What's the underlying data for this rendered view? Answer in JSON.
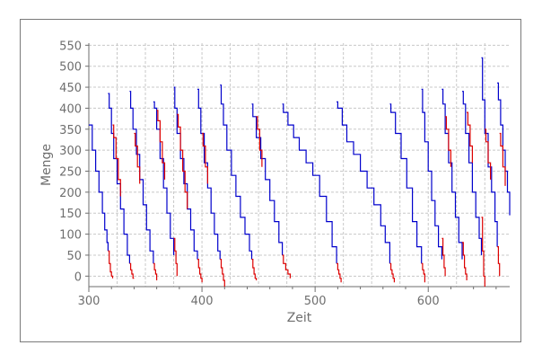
{
  "chart_data": {
    "type": "line",
    "title": "",
    "xlabel": "Zeit",
    "ylabel": "Menge",
    "xlim": [
      300,
      672
    ],
    "ylim": [
      -25,
      555
    ],
    "x_ticks": [
      300,
      400,
      500,
      600
    ],
    "y_ticks": [
      0,
      50,
      100,
      150,
      200,
      250,
      300,
      350,
      400,
      450,
      500,
      550
    ],
    "grid": true,
    "colors": {
      "inventory": "#0000cc",
      "shortfall": "#dd0000",
      "grid": "#c8c8c8",
      "axis": "#6e6e6e"
    },
    "series": [
      {
        "segments": [
          {
            "x": [
              300,
              303,
              306,
              309,
              312,
              314,
              316,
              317
            ],
            "y": [
              360,
              300,
              250,
              200,
              150,
              110,
              80,
              60
            ]
          },
          {
            "x": [
              317,
              318,
              320,
              322,
              325,
              328,
              331,
              334,
              336
            ],
            "y": [
              435,
              400,
              340,
              280,
              220,
              160,
              100,
              50,
              30
            ]
          },
          {
            "x": [
              336,
              337,
              339,
              342,
              345,
              348,
              351,
              354,
              357
            ],
            "y": [
              440,
              400,
              350,
              290,
              230,
              170,
              110,
              60,
              30
            ]
          },
          {
            "x": [
              357,
              358,
              360,
              363,
              366,
              369,
              372,
              375
            ],
            "y": [
              415,
              400,
              350,
              280,
              210,
              150,
              90,
              50
            ]
          },
          {
            "x": [
              375,
              376,
              378,
              381,
              384,
              387,
              390,
              393,
              396
            ],
            "y": [
              450,
              400,
              340,
              280,
              220,
              160,
              110,
              60,
              40
            ]
          },
          {
            "x": [
              396,
              397,
              399,
              402,
              405,
              408,
              411,
              414,
              416
            ],
            "y": [
              445,
              400,
              340,
              270,
              210,
              150,
              100,
              60,
              40
            ]
          },
          {
            "x": [
              416,
              417,
              419,
              422,
              426,
              430,
              434,
              438,
              442,
              444
            ],
            "y": [
              455,
              410,
              360,
              300,
              240,
              190,
              140,
              100,
              60,
              40
            ]
          },
          {
            "x": [
              444,
              445,
              448,
              452,
              456,
              460,
              464,
              468,
              471
            ],
            "y": [
              410,
              380,
              330,
              280,
              230,
              180,
              130,
              80,
              50
            ]
          },
          {
            "x": [
              471,
              472,
              476,
              481,
              486,
              492,
              498,
              504,
              510,
              515,
              519
            ],
            "y": [
              410,
              390,
              360,
              330,
              300,
              270,
              240,
              190,
              130,
              70,
              30
            ]
          },
          {
            "x": [
              519,
              520,
              524,
              528,
              534,
              540,
              546,
              552,
              558,
              562,
              566
            ],
            "y": [
              415,
              400,
              360,
              320,
              290,
              250,
              210,
              170,
              120,
              80,
              30
            ]
          },
          {
            "x": [
              566,
              567,
              571,
              576,
              581,
              586,
              590,
              594
            ],
            "y": [
              410,
              390,
              340,
              280,
              210,
              130,
              70,
              30
            ]
          },
          {
            "x": [
              594,
              595,
              597,
              600,
              603,
              606,
              609,
              612
            ],
            "y": [
              445,
              390,
              320,
              250,
              180,
              120,
              70,
              40
            ]
          },
          {
            "x": [
              612,
              613,
              615,
              618,
              621,
              624,
              627,
              630
            ],
            "y": [
              445,
              410,
              340,
              270,
              200,
              140,
              80,
              40
            ]
          },
          {
            "x": [
              630,
              631,
              633,
              636,
              639,
              642,
              645,
              647
            ],
            "y": [
              440,
              410,
              340,
              270,
              200,
              140,
              90,
              50
            ]
          },
          {
            "x": [
              647,
              648,
              650,
              653,
              656,
              659,
              661
            ],
            "y": [
              520,
              420,
              340,
              260,
              200,
              130,
              70
            ]
          },
          {
            "x": [
              661,
              662,
              664,
              666,
              668,
              670,
              672
            ],
            "y": [
              460,
              420,
              360,
              300,
              250,
              200,
              145
            ]
          }
        ]
      },
      {
        "segments": [
          {
            "x": [
              317,
              318,
              319,
              320,
              321
            ],
            "y": [
              60,
              30,
              10,
              0,
              -5
            ]
          },
          {
            "x": [
              321,
              322,
              324,
              326,
              328
            ],
            "y": [
              360,
              330,
              280,
              230,
              190
            ]
          },
          {
            "x": [
              336,
              337,
              338,
              339,
              340
            ],
            "y": [
              30,
              15,
              5,
              -5,
              -5
            ]
          },
          {
            "x": [
              340,
              341,
              343,
              345
            ],
            "y": [
              340,
              310,
              260,
              220
            ]
          },
          {
            "x": [
              357,
              358,
              359,
              360
            ],
            "y": [
              30,
              15,
              5,
              -10
            ]
          },
          {
            "x": [
              360,
              361,
              363,
              365,
              367
            ],
            "y": [
              395,
              370,
              320,
              270,
              230
            ]
          },
          {
            "x": [
              375,
              376,
              377,
              378
            ],
            "y": [
              90,
              60,
              30,
              0
            ]
          },
          {
            "x": [
              378,
              379,
              381,
              383,
              385,
              387
            ],
            "y": [
              385,
              355,
              300,
              250,
              200,
              160
            ]
          },
          {
            "x": [
              396,
              397,
              398,
              399,
              400
            ],
            "y": [
              40,
              20,
              5,
              -5,
              -15
            ]
          },
          {
            "x": [
              400,
              401,
              403,
              405
            ],
            "y": [
              340,
              310,
              260,
              220
            ]
          },
          {
            "x": [
              416,
              417,
              418,
              419,
              420
            ],
            "y": [
              40,
              20,
              5,
              -10,
              -25
            ]
          },
          {
            "x": [
              444,
              445,
              446,
              447,
              448
            ],
            "y": [
              40,
              20,
              5,
              -5,
              -10
            ]
          },
          {
            "x": [
              448,
              449,
              451,
              453
            ],
            "y": [
              380,
              350,
              300,
              260
            ]
          },
          {
            "x": [
              471,
              472,
              474,
              476,
              478
            ],
            "y": [
              50,
              30,
              15,
              5,
              -5
            ]
          },
          {
            "x": [
              519,
              520,
              521,
              522,
              523
            ],
            "y": [
              30,
              15,
              5,
              -5,
              -15
            ]
          },
          {
            "x": [
              566,
              567,
              568,
              569,
              570
            ],
            "y": [
              30,
              15,
              5,
              -5,
              -15
            ]
          },
          {
            "x": [
              594,
              595,
              596,
              597
            ],
            "y": [
              30,
              15,
              5,
              -15
            ]
          },
          {
            "x": [
              612,
              613,
              614,
              615
            ],
            "y": [
              90,
              50,
              20,
              0
            ]
          },
          {
            "x": [
              615,
              616,
              618,
              620
            ],
            "y": [
              380,
              350,
              300,
              260
            ]
          },
          {
            "x": [
              630,
              631,
              632,
              633,
              634
            ],
            "y": [
              80,
              50,
              20,
              5,
              -10
            ]
          },
          {
            "x": [
              634,
              635,
              637,
              639
            ],
            "y": [
              390,
              360,
              310,
              270
            ]
          },
          {
            "x": [
              647,
              648,
              649,
              650
            ],
            "y": [
              140,
              60,
              0,
              -25
            ]
          },
          {
            "x": [
              650,
              651,
              653,
              655
            ],
            "y": [
              350,
              320,
              270,
              230
            ]
          },
          {
            "x": [
              661,
              662,
              663
            ],
            "y": [
              70,
              30,
              0
            ]
          },
          {
            "x": [
              663,
              664,
              666,
              668
            ],
            "y": [
              340,
              310,
              260,
              215
            ]
          }
        ]
      }
    ]
  }
}
